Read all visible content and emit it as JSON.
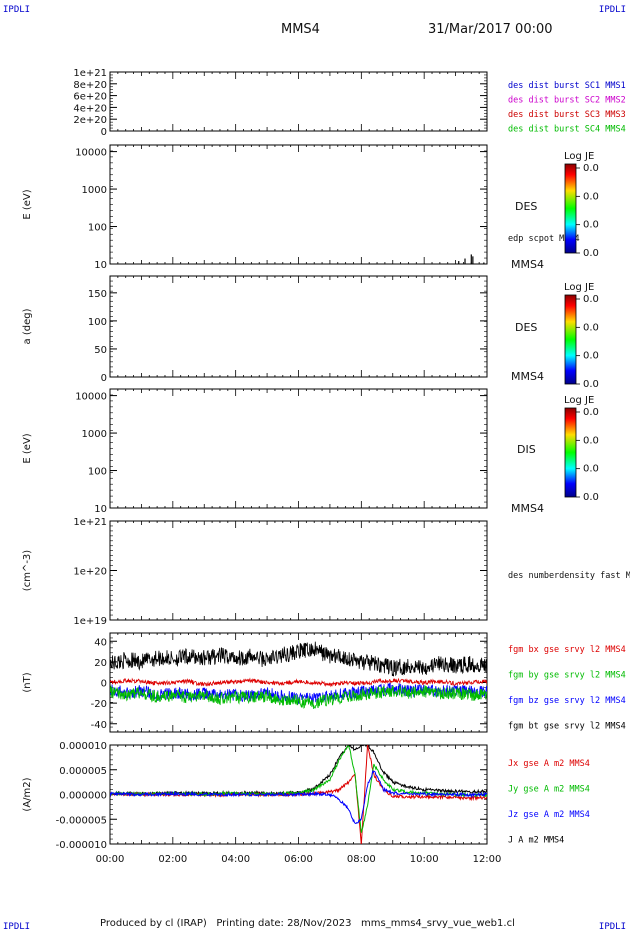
{
  "header": {
    "corner_label": "IPDLI",
    "spacecraft": "MMS4",
    "date_time": "31/Mar/2017 00:00"
  },
  "footer": {
    "produced_by": "Produced by cl (IRAP)   Printing date: 28/Nov/2023   mms_mms4_srvy_vue_web1.cl"
  },
  "chart_data": [
    {
      "type": "line",
      "panel": "distribution-burst",
      "ylabel": "",
      "y_ticks": [
        "1e+21",
        "8e+20",
        "6e+20",
        "4e+20",
        "2e+20",
        "0"
      ],
      "ylim": [
        0,
        1e+21
      ],
      "reference_line": {
        "y": 0,
        "style": "dashed"
      },
      "series": [
        {
          "name": "des dist burst SC1 MMS1",
          "color": "#0000cc",
          "values": []
        },
        {
          "name": "des dist burst SC2 MMS2",
          "color": "#cc00cc",
          "values": []
        },
        {
          "name": "des dist burst SC3 MMS3",
          "color": "#cc0000",
          "values": []
        },
        {
          "name": "des dist burst SC4 MMS4",
          "color": "#00bb00",
          "values": []
        }
      ]
    },
    {
      "type": "heatmap",
      "panel": "des-energy",
      "ylabel": "E (eV)",
      "yscale": "log",
      "ylim": [
        10,
        15000
      ],
      "y_ticks": [
        "10000",
        "1000",
        "100",
        "10"
      ],
      "instrument": "DES",
      "spacecraft": "MMS4",
      "colorbar": {
        "title": "Log JE",
        "labels": [
          "0.0",
          "0.0",
          "0.0",
          "0.0"
        ]
      },
      "overlay": {
        "name": "edp scpot MMS4",
        "color": "#000000",
        "points": [
          [
            11.1,
            12
          ],
          [
            11.3,
            14
          ],
          [
            11.5,
            18
          ],
          [
            11.55,
            16
          ],
          [
            11.9,
            11
          ]
        ]
      }
    },
    {
      "type": "heatmap",
      "panel": "des-pitch-angle",
      "ylabel": "a (deg)",
      "ylim": [
        0,
        180
      ],
      "y_ticks": [
        "150",
        "100",
        "50",
        "0"
      ],
      "instrument": "DES",
      "spacecraft": "MMS4",
      "colorbar": {
        "title": "Log JE",
        "labels": [
          "0.0",
          "0.0",
          "0.0",
          "0.0"
        ]
      }
    },
    {
      "type": "heatmap",
      "panel": "dis-energy",
      "ylabel": "E (eV)",
      "yscale": "log",
      "ylim": [
        10,
        15000
      ],
      "y_ticks": [
        "10000",
        "1000",
        "100",
        "10"
      ],
      "instrument": "DIS",
      "spacecraft": "MMS4",
      "colorbar": {
        "title": "Log JE",
        "labels": [
          "0.0",
          "0.0",
          "0.0",
          "0.0"
        ]
      }
    },
    {
      "type": "line",
      "panel": "density",
      "ylabel": "(cm^-3)",
      "yscale": "log",
      "ylim": [
        1e+19,
        1e+21
      ],
      "y_ticks": [
        "1e+21",
        "1e+20",
        "1e+19"
      ],
      "series": [
        {
          "name": "des numberdensity fast M",
          "color": "#000000",
          "values": []
        }
      ]
    },
    {
      "type": "line",
      "panel": "fgm",
      "ylabel": "(nT)",
      "ylim": [
        -48,
        48
      ],
      "y_ticks": [
        "40",
        "20",
        "0",
        "-20",
        "-40"
      ],
      "x_hours": [
        0,
        0.5,
        1,
        1.5,
        2,
        2.5,
        3,
        3.5,
        4,
        4.5,
        5,
        5.5,
        6,
        6.5,
        7,
        7.5,
        8,
        8.5,
        9,
        9.5,
        10,
        10.5,
        11,
        11.5,
        12
      ],
      "series": [
        {
          "name": "fgm bx gse srvy l2 MMS4",
          "color": "#dd0000",
          "values": [
            0,
            2,
            1,
            -1,
            0,
            1,
            -2,
            0,
            1,
            2,
            0,
            -1,
            1,
            0,
            -2,
            0,
            -1,
            1,
            2,
            1,
            0,
            1,
            -1,
            0,
            1
          ]
        },
        {
          "name": "fgm by gse srvy l2 MMS4",
          "color": "#00bb00",
          "values": [
            -8,
            -12,
            -10,
            -14,
            -12,
            -15,
            -13,
            -16,
            -14,
            -15,
            -13,
            -17,
            -18,
            -20,
            -16,
            -14,
            -12,
            -10,
            -8,
            -10,
            -9,
            -11,
            -10,
            -12,
            -11
          ]
        },
        {
          "name": "fgm bz gse srvy l2 MMS4",
          "color": "#0000ff",
          "values": [
            -6,
            -10,
            -8,
            -12,
            -10,
            -12,
            -11,
            -13,
            -12,
            -13,
            -10,
            -14,
            -15,
            -16,
            -13,
            -11,
            -9,
            -8,
            -6,
            -8,
            -7,
            -9,
            -8,
            -9,
            -8
          ]
        },
        {
          "name": "fgm bt gse srvy l2 MMS4",
          "color": "#000000",
          "values": [
            18,
            22,
            20,
            24,
            23,
            25,
            24,
            26,
            24,
            25,
            22,
            27,
            30,
            32,
            26,
            24,
            20,
            18,
            14,
            16,
            15,
            18,
            16,
            18,
            17
          ]
        }
      ]
    },
    {
      "type": "line",
      "panel": "current-density",
      "ylabel": "(A/m2)",
      "ylim": [
        -1e-05,
        1e-05
      ],
      "y_ticks": [
        "0.000010",
        "0.000005",
        "0.000000",
        "-0.000005",
        "-0.000010"
      ],
      "x_ticks": [
        "00:00",
        "02:00",
        "04:00",
        "06:00",
        "08:00",
        "10:00",
        "12:00"
      ],
      "x_hours": [
        0,
        1,
        2,
        3,
        4,
        5,
        6,
        6.5,
        7,
        7.3,
        7.6,
        7.8,
        8.0,
        8.2,
        8.4,
        8.7,
        9.0,
        9.5,
        10,
        10.5,
        11,
        11.5,
        12
      ],
      "series": [
        {
          "name": "Jx gse A m2 MMS4",
          "color": "#dd0000",
          "values": [
            0,
            1e-07,
            0,
            -1e-07,
            0,
            0,
            0,
            2e-07,
            5e-07,
            1e-06,
            2.5e-06,
            4e-06,
            -1e-05,
            1e-05,
            4e-06,
            1e-06,
            -3e-07,
            -5e-07,
            -4e-07,
            -5e-07,
            -6e-07,
            -7e-07,
            -6e-07
          ]
        },
        {
          "name": "Jy gse A m2 MMS4",
          "color": "#00bb00",
          "values": [
            2e-07,
            1e-07,
            2e-07,
            1e-07,
            2e-07,
            1e-07,
            3e-07,
            1e-06,
            3e-06,
            7e-06,
            1e-05,
            4e-06,
            -8e-06,
            -2e-06,
            6e-06,
            3e-06,
            1e-06,
            5e-07,
            3e-07,
            1e-07,
            0,
            -1e-07,
            -1e-07
          ]
        },
        {
          "name": "Jz gse A m2 MMS4",
          "color": "#0000ff",
          "values": [
            1e-07,
            0,
            1e-07,
            0,
            0,
            0,
            0,
            1e-07,
            0,
            -1e-06,
            -3e-06,
            -6e-06,
            -5e-06,
            2e-06,
            5e-06,
            1e-06,
            3e-07,
            2e-07,
            1e-07,
            0,
            0,
            -1e-07,
            0
          ]
        },
        {
          "name": "J A m2 MMS4",
          "color": "#000000",
          "values": [
            3e-07,
            2e-07,
            3e-07,
            2e-07,
            3e-07,
            2e-07,
            4e-07,
            1.2e-06,
            4e-06,
            7.5e-06,
            1e-05,
            9e-06,
            1e-05,
            1e-05,
            8.5e-06,
            4.5e-06,
            2.5e-06,
            1.5e-06,
            1e-06,
            8e-07,
            7e-07,
            6e-07,
            6e-07
          ]
        }
      ]
    }
  ]
}
